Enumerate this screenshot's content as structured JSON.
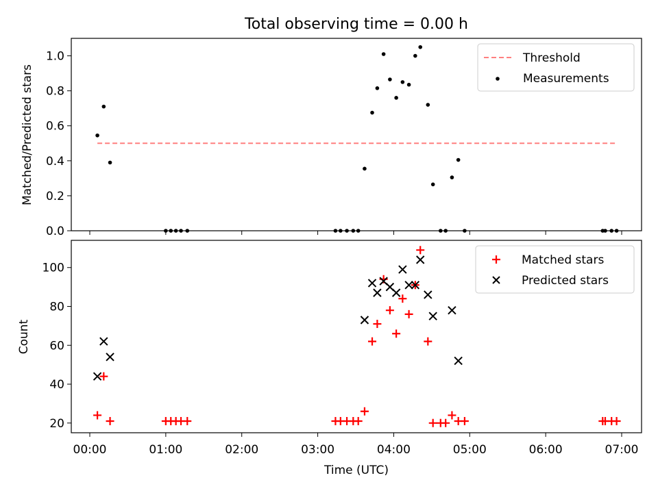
{
  "chart_data": [
    {
      "type": "scatter",
      "title": "Total observing time = 0.00 h",
      "ylabel": "Matched/Predicted stars",
      "xlabel": "",
      "xlim": [
        "00:00:00",
        "07:00:00"
      ],
      "ylim": [
        0,
        1.1
      ],
      "yticks": [
        "0.0",
        "0.2",
        "0.4",
        "0.6",
        "0.8",
        "1.0"
      ],
      "threshold": {
        "value": 0.5,
        "x_start": "00:06",
        "x_end": "06:56",
        "color": "#ff7f7f",
        "style": "dashed"
      },
      "legend": {
        "position": "top-right",
        "threshold_label": "Threshold",
        "measurements_label": "Measurements"
      },
      "series": [
        {
          "name": "Measurements",
          "color": "#000000",
          "marker": "dot",
          "points": [
            {
              "x": "00:06",
              "y": 0.545
            },
            {
              "x": "00:11",
              "y": 0.71
            },
            {
              "x": "00:16",
              "y": 0.39
            },
            {
              "x": "01:00",
              "y": 0.0
            },
            {
              "x": "01:04",
              "y": 0.0
            },
            {
              "x": "01:08",
              "y": 0.0
            },
            {
              "x": "01:12",
              "y": 0.0
            },
            {
              "x": "01:17",
              "y": 0.0
            },
            {
              "x": "03:14",
              "y": 0.0
            },
            {
              "x": "03:18",
              "y": 0.0
            },
            {
              "x": "03:23",
              "y": 0.0
            },
            {
              "x": "03:28",
              "y": 0.0
            },
            {
              "x": "03:32",
              "y": 0.0
            },
            {
              "x": "03:37",
              "y": 0.355
            },
            {
              "x": "03:43",
              "y": 0.675
            },
            {
              "x": "03:47",
              "y": 0.815
            },
            {
              "x": "03:52",
              "y": 1.01
            },
            {
              "x": "03:57",
              "y": 0.865
            },
            {
              "x": "04:02",
              "y": 0.76
            },
            {
              "x": "04:07",
              "y": 0.85
            },
            {
              "x": "04:12",
              "y": 0.835
            },
            {
              "x": "04:17",
              "y": 1.0
            },
            {
              "x": "04:21",
              "y": 1.05
            },
            {
              "x": "04:27",
              "y": 0.72
            },
            {
              "x": "04:31",
              "y": 0.265
            },
            {
              "x": "04:37",
              "y": 0.0
            },
            {
              "x": "04:41",
              "y": 0.0
            },
            {
              "x": "04:46",
              "y": 0.305
            },
            {
              "x": "04:51",
              "y": 0.405
            },
            {
              "x": "04:56",
              "y": 0.0
            },
            {
              "x": "06:45",
              "y": 0.0
            },
            {
              "x": "06:47",
              "y": 0.0
            },
            {
              "x": "06:52",
              "y": 0.0
            },
            {
              "x": "06:56",
              "y": 0.0
            }
          ]
        }
      ]
    },
    {
      "type": "scatter",
      "title": "",
      "ylabel": "Count",
      "xlabel": "Time (UTC)",
      "xlim": [
        "00:00:00",
        "07:00:00"
      ],
      "ylim": [
        15,
        114
      ],
      "yticks": [
        "20",
        "40",
        "60",
        "80",
        "100"
      ],
      "xticks": [
        "00:00",
        "01:00",
        "02:00",
        "03:00",
        "04:00",
        "05:00",
        "06:00",
        "07:00"
      ],
      "legend": {
        "position": "top-right",
        "matched_label": "Matched stars",
        "predicted_label": "Predicted stars"
      },
      "series": [
        {
          "name": "Matched stars",
          "color": "#ff0000",
          "marker": "plus",
          "points": [
            {
              "x": "00:06",
              "y": 24
            },
            {
              "x": "00:11",
              "y": 44
            },
            {
              "x": "00:16",
              "y": 21
            },
            {
              "x": "01:00",
              "y": 21
            },
            {
              "x": "01:04",
              "y": 21
            },
            {
              "x": "01:08",
              "y": 21
            },
            {
              "x": "01:12",
              "y": 21
            },
            {
              "x": "01:17",
              "y": 21
            },
            {
              "x": "03:14",
              "y": 21
            },
            {
              "x": "03:18",
              "y": 21
            },
            {
              "x": "03:23",
              "y": 21
            },
            {
              "x": "03:28",
              "y": 21
            },
            {
              "x": "03:32",
              "y": 21
            },
            {
              "x": "03:37",
              "y": 26
            },
            {
              "x": "03:43",
              "y": 62
            },
            {
              "x": "03:47",
              "y": 71
            },
            {
              "x": "03:52",
              "y": 94
            },
            {
              "x": "03:57",
              "y": 78
            },
            {
              "x": "04:02",
              "y": 66
            },
            {
              "x": "04:07",
              "y": 84
            },
            {
              "x": "04:12",
              "y": 76
            },
            {
              "x": "04:17",
              "y": 91
            },
            {
              "x": "04:21",
              "y": 109
            },
            {
              "x": "04:27",
              "y": 62
            },
            {
              "x": "04:31",
              "y": 20
            },
            {
              "x": "04:37",
              "y": 20
            },
            {
              "x": "04:41",
              "y": 20
            },
            {
              "x": "04:46",
              "y": 24
            },
            {
              "x": "04:51",
              "y": 21
            },
            {
              "x": "04:56",
              "y": 21
            },
            {
              "x": "06:45",
              "y": 21
            },
            {
              "x": "06:47",
              "y": 21
            },
            {
              "x": "06:52",
              "y": 21
            },
            {
              "x": "06:56",
              "y": 21
            }
          ]
        },
        {
          "name": "Predicted stars",
          "color": "#000000",
          "marker": "x",
          "points": [
            {
              "x": "00:06",
              "y": 44
            },
            {
              "x": "00:11",
              "y": 62
            },
            {
              "x": "00:16",
              "y": 54
            },
            {
              "x": "03:37",
              "y": 73
            },
            {
              "x": "03:43",
              "y": 92
            },
            {
              "x": "03:47",
              "y": 87
            },
            {
              "x": "03:52",
              "y": 93
            },
            {
              "x": "03:57",
              "y": 90
            },
            {
              "x": "04:02",
              "y": 87
            },
            {
              "x": "04:07",
              "y": 99
            },
            {
              "x": "04:12",
              "y": 91
            },
            {
              "x": "04:17",
              "y": 91
            },
            {
              "x": "04:21",
              "y": 104
            },
            {
              "x": "04:27",
              "y": 86
            },
            {
              "x": "04:31",
              "y": 75
            },
            {
              "x": "04:46",
              "y": 78
            },
            {
              "x": "04:51",
              "y": 52
            }
          ]
        }
      ]
    }
  ]
}
